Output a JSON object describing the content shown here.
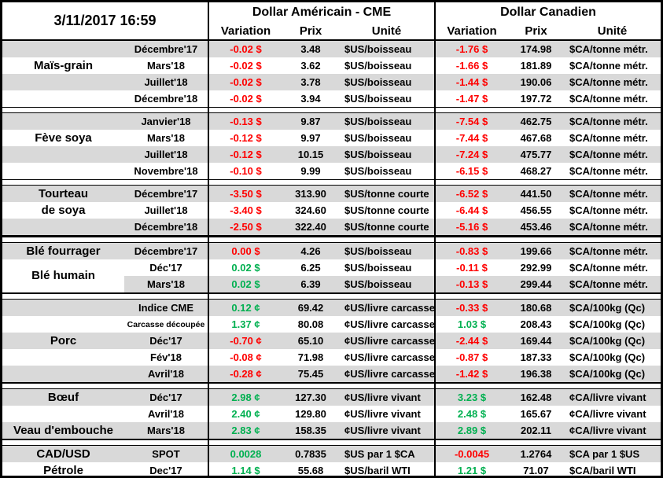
{
  "meta": {
    "timestamp": "3/11/2017 16:59"
  },
  "header": {
    "us_title": "Dollar Américain - CME",
    "ca_title": "Dollar Canadien",
    "col_variation": "Variation",
    "col_prix": "Prix",
    "col_unite": "Unité"
  },
  "colors": {
    "negative": "#ff0000",
    "positive": "#00b050",
    "row_shade": "#d9d9d9",
    "border": "#000000"
  },
  "sections": [
    {
      "name": "mais-grain",
      "rows": [
        {
          "category": "",
          "contract": "Décembre'17",
          "shade": true,
          "us": {
            "variation": "-0.02 $",
            "dir": "neg",
            "prix": "3.48",
            "unite": "$US/boisseau"
          },
          "ca": {
            "variation": "-1.76 $",
            "dir": "neg",
            "prix": "174.98",
            "unite": "$CA/tonne métr."
          }
        },
        {
          "category": "Maïs-grain",
          "contract": "Mars'18",
          "shade": false,
          "us": {
            "variation": "-0.02 $",
            "dir": "neg",
            "prix": "3.62",
            "unite": "$US/boisseau"
          },
          "ca": {
            "variation": "-1.66 $",
            "dir": "neg",
            "prix": "181.89",
            "unite": "$CA/tonne métr."
          }
        },
        {
          "category": "",
          "contract": "Juillet'18",
          "shade": true,
          "us": {
            "variation": "-0.02 $",
            "dir": "neg",
            "prix": "3.78",
            "unite": "$US/boisseau"
          },
          "ca": {
            "variation": "-1.44 $",
            "dir": "neg",
            "prix": "190.06",
            "unite": "$CA/tonne métr."
          }
        },
        {
          "category": "",
          "contract": "Décembre'18",
          "shade": false,
          "us": {
            "variation": "-0.02 $",
            "dir": "neg",
            "prix": "3.94",
            "unite": "$US/boisseau"
          },
          "ca": {
            "variation": "-1.47 $",
            "dir": "neg",
            "prix": "197.72",
            "unite": "$CA/tonne métr."
          }
        }
      ]
    },
    {
      "name": "feve-soya",
      "sep_before": 1,
      "rows": [
        {
          "category": "",
          "contract": "Janvier'18",
          "shade": true,
          "us": {
            "variation": "-0.13 $",
            "dir": "neg",
            "prix": "9.87",
            "unite": "$US/boisseau"
          },
          "ca": {
            "variation": "-7.54 $",
            "dir": "neg",
            "prix": "462.75",
            "unite": "$CA/tonne métr."
          }
        },
        {
          "category": "Fève soya",
          "contract": "Mars'18",
          "shade": false,
          "us": {
            "variation": "-0.12 $",
            "dir": "neg",
            "prix": "9.97",
            "unite": "$US/boisseau"
          },
          "ca": {
            "variation": "-7.44 $",
            "dir": "neg",
            "prix": "467.68",
            "unite": "$CA/tonne métr."
          }
        },
        {
          "category": "",
          "contract": "Juillet'18",
          "shade": true,
          "us": {
            "variation": "-0.12 $",
            "dir": "neg",
            "prix": "10.15",
            "unite": "$US/boisseau"
          },
          "ca": {
            "variation": "-7.24 $",
            "dir": "neg",
            "prix": "475.77",
            "unite": "$CA/tonne métr."
          }
        },
        {
          "category": "",
          "contract": "Novembre'18",
          "shade": false,
          "us": {
            "variation": "-0.10 $",
            "dir": "neg",
            "prix": "9.99",
            "unite": "$US/boisseau"
          },
          "ca": {
            "variation": "-6.15 $",
            "dir": "neg",
            "prix": "468.27",
            "unite": "$CA/tonne métr."
          }
        }
      ]
    },
    {
      "name": "tourteau-de-soya",
      "sep_before": 1,
      "rows": [
        {
          "category": "Tourteau",
          "contract": "Décembre'17",
          "shade": true,
          "us": {
            "variation": "-3.50 $",
            "dir": "neg",
            "prix": "313.90",
            "unite": "$US/tonne courte"
          },
          "ca": {
            "variation": "-6.52 $",
            "dir": "neg",
            "prix": "441.50",
            "unite": "$CA/tonne métr."
          }
        },
        {
          "category": "de soya",
          "contract": "Juillet'18",
          "shade": false,
          "us": {
            "variation": "-3.40 $",
            "dir": "neg",
            "prix": "324.60",
            "unite": "$US/tonne courte"
          },
          "ca": {
            "variation": "-6.44 $",
            "dir": "neg",
            "prix": "456.55",
            "unite": "$CA/tonne métr."
          }
        },
        {
          "category": "",
          "contract": "Décembre'18",
          "shade": true,
          "us": {
            "variation": "-2.50 $",
            "dir": "neg",
            "prix": "322.40",
            "unite": "$US/tonne courte"
          },
          "ca": {
            "variation": "-5.16 $",
            "dir": "neg",
            "prix": "453.46",
            "unite": "$CA/tonne métr."
          }
        }
      ]
    },
    {
      "name": "ble",
      "sep_before": 3,
      "rows": [
        {
          "category": "Blé fourrager",
          "contract": "Décembre'17",
          "shade": true,
          "us": {
            "variation": "0.00 $",
            "dir": "neg",
            "prix": "4.26",
            "unite": "$US/boisseau"
          },
          "ca": {
            "variation": "-0.83 $",
            "dir": "neg",
            "prix": "199.66",
            "unite": "$CA/tonne métr."
          }
        },
        {
          "category": "Blé humain",
          "straddle": true,
          "contract": "Déc'17",
          "shade": false,
          "us": {
            "variation": "0.02 $",
            "dir": "pos",
            "prix": "6.25",
            "unite": "$US/boisseau"
          },
          "ca": {
            "variation": "-0.11 $",
            "dir": "neg",
            "prix": "292.99",
            "unite": "$CA/tonne métr."
          }
        },
        {
          "category": "",
          "category_white_bg": true,
          "contract": "Mars'18",
          "shade": true,
          "us": {
            "variation": "0.02 $",
            "dir": "pos",
            "prix": "6.39",
            "unite": "$US/boisseau"
          },
          "ca": {
            "variation": "-0.13 $",
            "dir": "neg",
            "prix": "299.44",
            "unite": "$CA/tonne métr."
          }
        }
      ]
    },
    {
      "name": "porc",
      "sep_before": 2,
      "rows": [
        {
          "category": "",
          "contract": "Indice CME",
          "shade": true,
          "us": {
            "variation": "0.12 ¢",
            "dir": "pos",
            "prix": "69.42",
            "unite": "¢US/livre carcasse"
          },
          "ca": {
            "variation": "-0.33 $",
            "dir": "neg",
            "prix": "180.68",
            "unite": "$CA/100kg (Qc)"
          }
        },
        {
          "category": "",
          "contract": "Carcasse découpée",
          "small": true,
          "shade": false,
          "us": {
            "variation": "1.37 ¢",
            "dir": "pos",
            "prix": "80.08",
            "unite": "¢US/livre carcasse"
          },
          "ca": {
            "variation": "1.03 $",
            "dir": "pos",
            "prix": "208.43",
            "unite": "$CA/100kg (Qc)"
          }
        },
        {
          "category": "Porc",
          "contract": "Déc'17",
          "shade": true,
          "us": {
            "variation": "-0.70 ¢",
            "dir": "neg",
            "prix": "65.10",
            "unite": "¢US/livre carcasse"
          },
          "ca": {
            "variation": "-2.44 $",
            "dir": "neg",
            "prix": "169.44",
            "unite": "$CA/100kg (Qc)"
          }
        },
        {
          "category": "",
          "contract": "Fév'18",
          "shade": false,
          "us": {
            "variation": "-0.08 ¢",
            "dir": "neg",
            "prix": "71.98",
            "unite": "¢US/livre carcasse"
          },
          "ca": {
            "variation": "-0.87 $",
            "dir": "neg",
            "prix": "187.33",
            "unite": "$CA/100kg (Qc)"
          }
        },
        {
          "category": "",
          "contract": "Avril'18",
          "shade": true,
          "us": {
            "variation": "-0.28 ¢",
            "dir": "neg",
            "prix": "75.45",
            "unite": "¢US/livre carcasse"
          },
          "ca": {
            "variation": "-1.42 $",
            "dir": "neg",
            "prix": "196.38",
            "unite": "$CA/100kg (Qc)"
          }
        }
      ]
    },
    {
      "name": "boeuf-veau",
      "sep_before": 2,
      "rows": [
        {
          "category": "Bœuf",
          "contract": "Déc'17",
          "shade": true,
          "us": {
            "variation": "2.98 ¢",
            "dir": "pos",
            "prix": "127.30",
            "unite": "¢US/livre vivant"
          },
          "ca": {
            "variation": "3.23 $",
            "dir": "pos",
            "prix": "162.48",
            "unite": "¢CA/livre vivant"
          }
        },
        {
          "category": "",
          "contract": "Avril'18",
          "shade": false,
          "us": {
            "variation": "2.40 ¢",
            "dir": "pos",
            "prix": "129.80",
            "unite": "¢US/livre vivant"
          },
          "ca": {
            "variation": "2.48 $",
            "dir": "pos",
            "prix": "165.67",
            "unite": "¢CA/livre vivant"
          }
        },
        {
          "category": "Veau d'embouche",
          "contract": "Mars'18",
          "shade": true,
          "us": {
            "variation": "2.83 ¢",
            "dir": "pos",
            "prix": "158.35",
            "unite": "¢US/livre vivant"
          },
          "ca": {
            "variation": "2.89 $",
            "dir": "pos",
            "prix": "202.11",
            "unite": "¢CA/livre vivant"
          }
        }
      ]
    },
    {
      "name": "devise-petrole",
      "sep_before": 2,
      "rows": [
        {
          "category": "CAD/USD",
          "contract": "SPOT",
          "shade": true,
          "us": {
            "variation": "0.0028",
            "dir": "pos",
            "prix": "0.7835",
            "unite": "$US par 1 $CA"
          },
          "ca": {
            "variation": "-0.0045",
            "dir": "neg",
            "prix": "1.2764",
            "unite": "$CA par 1 $US"
          }
        },
        {
          "category": "Pétrole",
          "contract": "Dec'17",
          "shade": false,
          "us": {
            "variation": "1.14 $",
            "dir": "pos",
            "prix": "55.68",
            "unite": "$US/baril WTI"
          },
          "ca": {
            "variation": "1.21 $",
            "dir": "pos",
            "prix": "71.07",
            "unite": "$CA/baril WTI"
          }
        }
      ]
    }
  ]
}
